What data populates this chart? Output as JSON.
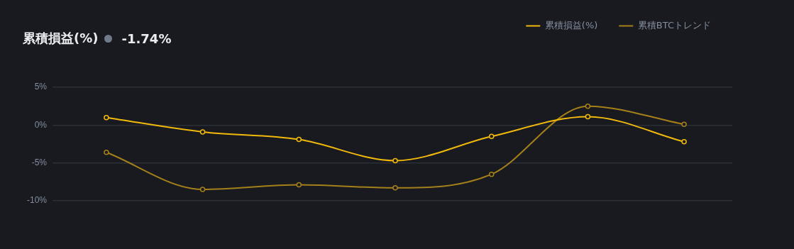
{
  "chart_data": {
    "type": "line",
    "title": "累積損益(%)",
    "subtitle": "-1.74%",
    "categories": [
      null,
      null,
      null,
      null,
      null,
      null,
      null
    ],
    "series": [
      {
        "name": "累積損益(%)",
        "color": "#f0b90b",
        "values": [
          1.0,
          -0.9,
          -1.9,
          -4.7,
          -1.5,
          1.1,
          -2.2
        ]
      },
      {
        "name": "累積BTCトレンド",
        "color": "#a5801a",
        "values": [
          -3.6,
          -8.5,
          -7.9,
          -8.3,
          -6.5,
          2.5,
          0.1
        ]
      }
    ],
    "ylim": [
      -10,
      5
    ],
    "yticks": [
      {
        "value": 5,
        "label": "5%"
      },
      {
        "value": 0,
        "label": "0%"
      },
      {
        "value": -5,
        "label": "-5%"
      },
      {
        "value": -10,
        "label": "-10%"
      }
    ],
    "tick_labels": "y",
    "grid": "y",
    "legend": "top right",
    "marker": "circle"
  }
}
